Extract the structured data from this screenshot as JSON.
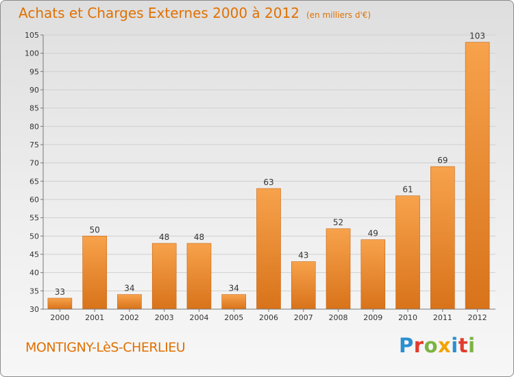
{
  "header": {
    "title": "Achats et Charges Externes 2000 à 2012",
    "unit": "(en milliers d'€)"
  },
  "footer": {
    "commune": "MONTIGNY-LèS-CHERLIEU",
    "brand_letters": [
      "P",
      "r",
      "o",
      "x",
      "i",
      "t",
      "i"
    ],
    "brand_colors": [
      "#2a8fd0",
      "#e23b2e",
      "#7cb342",
      "#f2a400",
      "#2a8fd0",
      "#e23b2e",
      "#7cb342"
    ]
  },
  "colors": {
    "accent": "#e07000",
    "bar_top": "#f7a24c",
    "bar_bottom": "#d8731a",
    "grid": "#cfcfcf",
    "axis_text": "#333333"
  },
  "chart_data": {
    "type": "bar",
    "categories": [
      "2000",
      "2001",
      "2002",
      "2003",
      "2004",
      "2005",
      "2006",
      "2007",
      "2008",
      "2009",
      "2010",
      "2011",
      "2012"
    ],
    "values": [
      33,
      50,
      34,
      48,
      48,
      34,
      63,
      43,
      52,
      49,
      61,
      69,
      103
    ],
    "title": "Achats et Charges Externes 2000 à 2012",
    "xlabel": "",
    "ylabel": "",
    "ylim": [
      30,
      105
    ],
    "yticks": [
      30,
      35,
      40,
      45,
      50,
      55,
      60,
      65,
      70,
      75,
      80,
      85,
      90,
      95,
      100,
      105
    ],
    "grid": true,
    "data_labels": true
  }
}
